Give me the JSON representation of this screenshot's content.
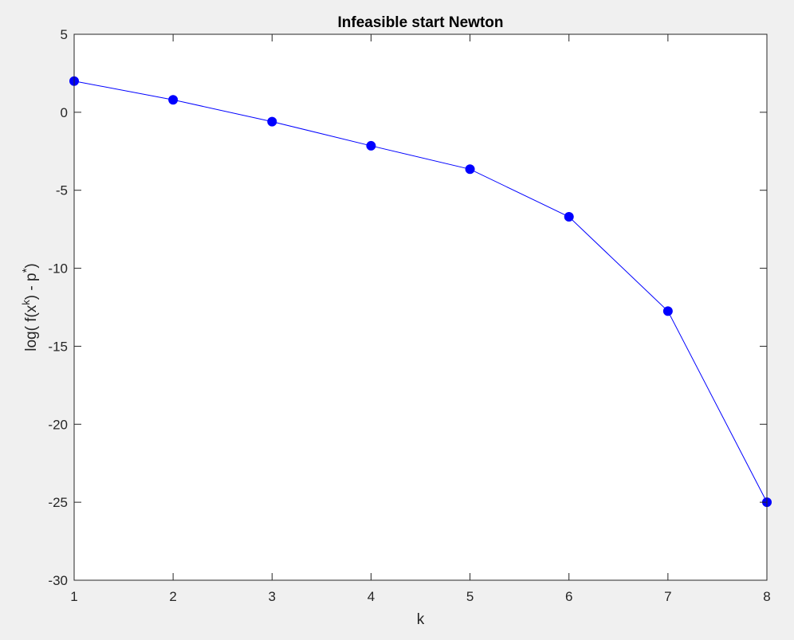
{
  "chart_data": {
    "type": "line",
    "title": "Infeasible start Newton",
    "xlabel": "k",
    "ylabel": {
      "prefix": "log( f(x",
      "superscript": "k",
      "suffix": ") - p",
      "star": "*",
      "close": ")"
    },
    "xlim": [
      1,
      8
    ],
    "ylim": [
      -30,
      5
    ],
    "xticks": [
      1,
      2,
      3,
      4,
      5,
      6,
      7,
      8
    ],
    "xtick_labels": [
      "1",
      "2",
      "3",
      "4",
      "5",
      "6",
      "7",
      "8"
    ],
    "yticks": [
      5,
      0,
      -5,
      -10,
      -15,
      -20,
      -25,
      -30
    ],
    "ytick_labels": [
      "5",
      "0",
      "-5",
      "-10",
      "-15",
      "-20",
      "-25",
      "-30"
    ],
    "grid": false,
    "series": [
      {
        "color": "#0000ff",
        "marker": "circle",
        "x": [
          1,
          2,
          3,
          4,
          5,
          6,
          7,
          8
        ],
        "values": [
          2.0,
          0.8,
          -0.6,
          -2.15,
          -3.65,
          -6.7,
          -12.75,
          -25.0
        ]
      }
    ]
  }
}
